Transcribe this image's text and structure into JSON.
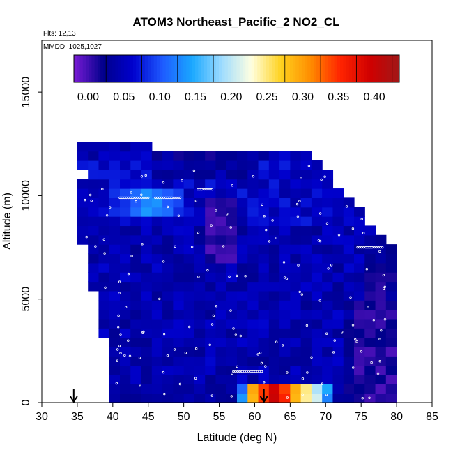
{
  "chart_data": {
    "type": "heatmap",
    "title": "ATOM3 Northeast_Pacific_2 NO2_CL",
    "flights_label": "Flts: 12,13",
    "dates_label": "MMDD: 1025,1027",
    "xlabel": "Latitude (deg N)",
    "ylabel": "Altitude (m)",
    "xlim": [
      30,
      85
    ],
    "ylim": [
      0,
      17500
    ],
    "x_ticks": [
      "30",
      "35",
      "40",
      "45",
      "50",
      "55",
      "60",
      "65",
      "70",
      "75",
      "80",
      "85"
    ],
    "y_ticks": [
      "0",
      "5000",
      "10000",
      "15000"
    ],
    "colorbar": {
      "range": [
        -0.02,
        0.435
      ],
      "tick_values": [
        0.0,
        0.05,
        0.1,
        0.15,
        0.2,
        0.25,
        0.3,
        0.35,
        0.4
      ],
      "tick_labels": [
        "0.00",
        "0.05",
        "0.10",
        "0.15",
        "0.20",
        "0.25",
        "0.30",
        "0.35",
        "0.40"
      ],
      "colors": [
        "#7a1bd6",
        "#00008b",
        "#0000cd",
        "#1e5bff",
        "#1aa8ff",
        "#9fdcff",
        "#ffffe0",
        "#ffd21e",
        "#ff8c00",
        "#ff2400",
        "#d00000",
        "#a01818"
      ]
    },
    "grid_x_lat": [
      35,
      80,
      1.5
    ],
    "grid_y_alt": [
      0,
      12500,
      450
    ],
    "coverage_top": [
      [
        35,
        12500
      ],
      [
        38,
        12500
      ],
      [
        40,
        12400
      ],
      [
        60,
        12300
      ],
      [
        65,
        12300
      ],
      [
        68,
        11800
      ],
      [
        70,
        11300
      ],
      [
        72,
        10400
      ],
      [
        75,
        9600
      ],
      [
        76,
        8800
      ],
      [
        78,
        7800
      ],
      [
        80,
        7400
      ]
    ],
    "coverage_bottom_left": [
      [
        35,
        12500
      ],
      [
        36,
        11000
      ],
      [
        35,
        9500
      ],
      [
        35,
        8200
      ],
      [
        36,
        7200
      ],
      [
        37,
        6000
      ],
      [
        38,
        4200
      ],
      [
        39,
        2600
      ],
      [
        39.5,
        1500
      ],
      [
        40,
        700
      ],
      [
        40,
        0
      ]
    ],
    "features": [
      {
        "name": "bl-enhancement",
        "lat": [
          57,
          70
        ],
        "alt": [
          0,
          1100
        ],
        "peak": 0.4,
        "peak_lat": 62
      },
      {
        "name": "upper-band-44",
        "lat": [
          39,
          49
        ],
        "alt": [
          9000,
          10200
        ],
        "peak": 0.13
      },
      {
        "name": "purple-column-58",
        "lat": [
          53,
          57
        ],
        "alt": [
          6700,
          10000
        ],
        "peak": -0.01
      },
      {
        "name": "right-purple-78",
        "lat": [
          72,
          80
        ],
        "alt": [
          0,
          5000
        ],
        "peak": -0.005
      }
    ],
    "arrows_lat": [
      34.5,
      61.3
    ],
    "sample_tracks": [
      {
        "lat": [
          41,
          45
        ],
        "alt": 9900
      },
      {
        "lat": [
          46,
          49.5
        ],
        "alt": 9900
      },
      {
        "lat": [
          64,
          68
        ],
        "alt": 12300
      },
      {
        "lat": [
          57,
          61
        ],
        "alt": 1500
      },
      {
        "lat": [
          74.5,
          78
        ],
        "alt": 7500
      },
      {
        "lat": [
          52,
          54
        ],
        "alt": 10300
      }
    ]
  }
}
